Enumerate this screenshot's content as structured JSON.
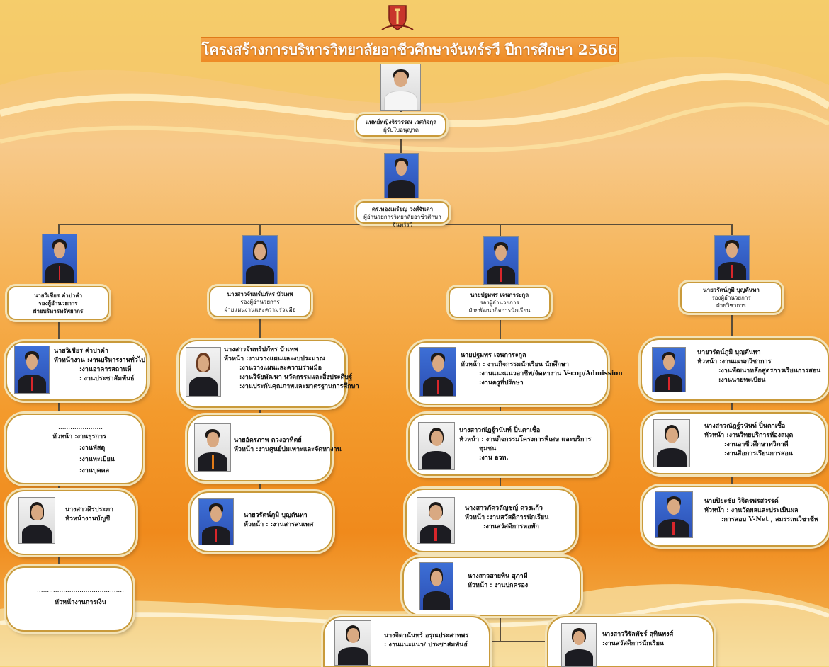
{
  "title": "โครงสร้างการบริหารวิทยาลัยอาชีวศึกษาจันทร์รวี ปีการศึกษา 2566",
  "colors": {
    "accent": "#f08a1c",
    "frame": "#c99a3a",
    "title_bg": "#ee8b25"
  },
  "top": {
    "licensee": {
      "name": "แพทย์หญิงจิรวรรณ เวศกิจกุล",
      "role": "ผู้รับใบอนุญาต"
    },
    "director": {
      "name": "ดร.ทองเหรียญ วงศ์จันดา",
      "role": "ผู้อำนวยการวิทยาลัยอาชีวศึกษาจันทร์รวี"
    }
  },
  "deputies": [
    {
      "name": "นายวิเชียร คำปาคำ",
      "role": "รองผู้อำนวยการ",
      "dept": "ฝ่ายบริหารทรัพยากร"
    },
    {
      "name": "นางสาวจันทร์ปภัทร บัวเทพ",
      "role": "รองผู้อำนวยการ",
      "dept": "ฝ่ายแผนงานและความร่วมมือ"
    },
    {
      "name": "นายปฐมพร เจนการะกูล",
      "role": "รองผู้อำนวยการ",
      "dept": "ฝ่ายพัฒนากิจการนักเรียน"
    },
    {
      "name": "นายวรัตน์ภูมิ บุญตันทา",
      "role": "รองผู้อำนวยการ",
      "dept": "ฝ่ายวิชาการ"
    }
  ],
  "col1": {
    "c1": {
      "name": "นายวิเชียร คำปาคำ",
      "l1": "หัวหน้างาน :งานบริหารงานทั่วไป",
      "l2": ":งานอาคารสถานที่",
      "l3": ": งานประชาสัมพันธ์"
    },
    "c2": {
      "dots": "......................",
      "l1": "หัวหน้า :งานธุรการ",
      "l2": ":งานพัสดุ",
      "l3": ":งานทะเบียน",
      "l4": ":งานบุคคล"
    },
    "c3": {
      "name": "นางสาวศิรประภา",
      "l1": "หัวหน้างานบัญชี"
    },
    "c4": {
      "dots": "...........................................",
      "l1": "หัวหน้างานการเงิน"
    }
  },
  "col2": {
    "c1": {
      "name": "นางสาวจันทร์ปภัทร บัวเทพ",
      "l1": "หัวหน้า :งานวางแผนและงบประมาณ",
      "l2": ":งานวางแผนและความร่วมมือ",
      "l3": ":งานวิจัยพัฒนา นวัตกรรมและสิ่งประดิษฐ์",
      "l4": ":งานประกันคุณภาพและมาตรฐานการศึกษา"
    },
    "c2": {
      "name": "นายอัครภาพ ดวงอาทิตย์",
      "l1": "หัวหน้า :งานศูนย์บ่มเพาะและจัดหางาน"
    },
    "c3": {
      "name": "นายวรัตน์ภูมิ บุญตันทา",
      "l1": "หัวหน้า : :งานสารสนเทศ"
    }
  },
  "col3": {
    "c1": {
      "name": "นายปฐมพร เจนการะกูล",
      "l1": "หัวหน้า : งานกิจกรรมนักเรียน นักศึกษา",
      "l2": ":งานแนะแนวอาชีพ/จัดหางาน V-cop/Admission",
      "l3": ":งานครูที่ปรึกษา"
    },
    "c2": {
      "name": "นางสาวณัฏฐ์วนันท์ ปิ่นตาเชื้อ",
      "l1": "หัวหน้า : งานกิจกรรมโครงการพิเศษ และบริการ",
      "l2": "ชุมชน",
      "l3": ":งาน อวท."
    },
    "c3": {
      "name": "นางสาวภัควลัญชญ์ ดวงแก้ว",
      "l1": "หัวหน้า :งานสวัสดิการนักเรียน",
      "l2": ":งานสวัสดิการหอพัก"
    },
    "c4": {
      "name": "นางสาวสายพิน สุภามี",
      "l1": "หัวหน้า : งานปกครอง"
    }
  },
  "col4": {
    "c1": {
      "name": "นายวรัตน์ภูมิ บุญตันทา",
      "l1": "หัวหน้า :งานแผนกวิชาการ",
      "l2": ":งานพัฒนาหลักสูตรการเรียนการสอน",
      "l3": ":งานนายทะเบียน"
    },
    "c2": {
      "name": "นางสาวณัฏฐ์วนันท์ ปิ่นตาเชื้อ",
      "l1": "หัวหน้า :งานวิทยบริการห้องสมุด",
      "l2": ":งานอาชีวศึกษาทวิภาคี",
      "l3": ":งานสื่อการเรียนการสอน"
    },
    "c3": {
      "name": "นายปิยะชัย วิจิตรพรสวรรค์",
      "l1": "หัวหน้า : งานวัดผลและประเมินผล",
      "l2": ":การสอบ V-Net , สมรรถนวิชาชีพ"
    }
  },
  "bottom": {
    "b1": {
      "name": "นางจิตานันทร์ อรุณประสาทพร",
      "l1": ": งานแนะแนว/ ประชาสัมพันธ์"
    },
    "b2": {
      "name": "นางสาววิรัลพัชร์ สุทินพงศ์",
      "l1": ":งานสวัสดิการนักเรียน"
    }
  }
}
